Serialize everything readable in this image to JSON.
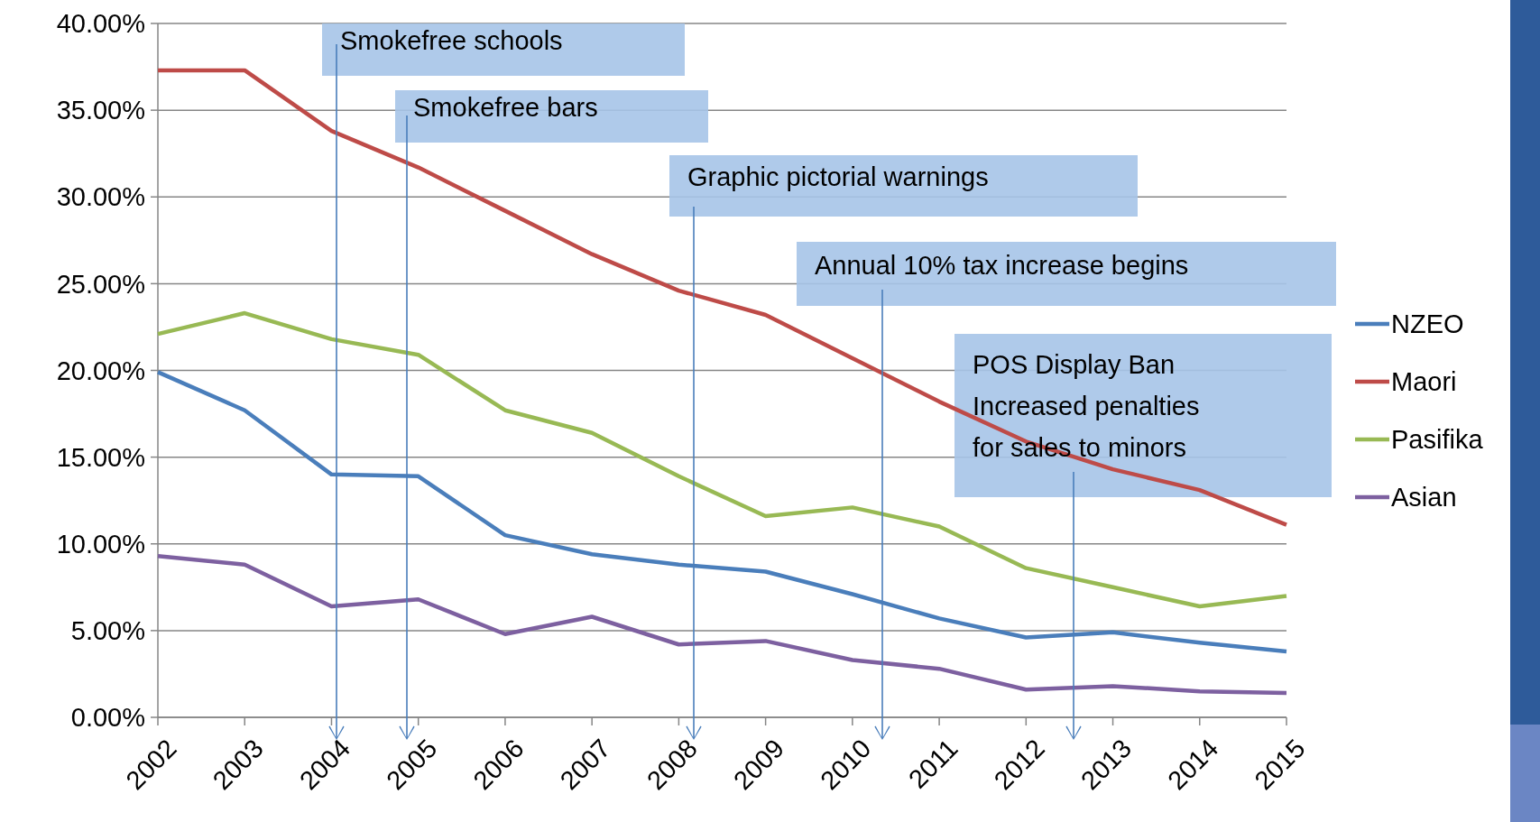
{
  "chart_data": {
    "type": "line",
    "categories": [
      "2002",
      "2003",
      "2004",
      "2005",
      "2006",
      "2007",
      "2008",
      "2009",
      "2010",
      "2011",
      "2012",
      "2013",
      "2014",
      "2015"
    ],
    "series": [
      {
        "name": "NZEO",
        "color": "#4a7ebb",
        "values": [
          19.9,
          17.7,
          14.0,
          13.9,
          10.5,
          9.4,
          8.8,
          8.4,
          7.1,
          5.7,
          4.6,
          4.9,
          4.3,
          3.8
        ]
      },
      {
        "name": "Maori",
        "color": "#be4b48",
        "values": [
          37.3,
          37.3,
          33.8,
          31.7,
          29.2,
          26.7,
          24.6,
          23.2,
          20.7,
          18.2,
          15.9,
          14.3,
          13.1,
          11.1
        ]
      },
      {
        "name": "Pasifika",
        "color": "#98b954",
        "values": [
          22.1,
          23.3,
          21.8,
          20.9,
          17.7,
          16.4,
          13.9,
          11.6,
          12.1,
          11.0,
          8.6,
          7.5,
          6.4,
          7.0
        ]
      },
      {
        "name": "Asian",
        "color": "#7d60a0",
        "values": [
          9.3,
          8.8,
          6.4,
          6.8,
          4.8,
          5.8,
          4.2,
          4.4,
          3.3,
          2.8,
          1.6,
          1.8,
          1.5,
          1.4
        ]
      }
    ],
    "ylim": [
      0,
      40
    ],
    "yticks": [
      {
        "value": 0,
        "label": "0.00%"
      },
      {
        "value": 5,
        "label": "5.00%"
      },
      {
        "value": 10,
        "label": "10.00%"
      },
      {
        "value": 15,
        "label": "15.00%"
      },
      {
        "value": 20,
        "label": "20.00%"
      },
      {
        "value": 25,
        "label": "25.00%"
      },
      {
        "value": 30,
        "label": "30.00%"
      },
      {
        "value": 35,
        "label": "35.00%"
      },
      {
        "value": 40,
        "label": "40.00%"
      }
    ],
    "grid": "y",
    "legend": "right",
    "marker": "none",
    "line_style": "solid",
    "annotations": [
      "Smokefree schools",
      "Smokefree bars",
      "Graphic pictorial warnings",
      "Annual 10% tax increase begins",
      "POS Display Ban\nIncreased penalties\nfor sales to minors"
    ]
  }
}
